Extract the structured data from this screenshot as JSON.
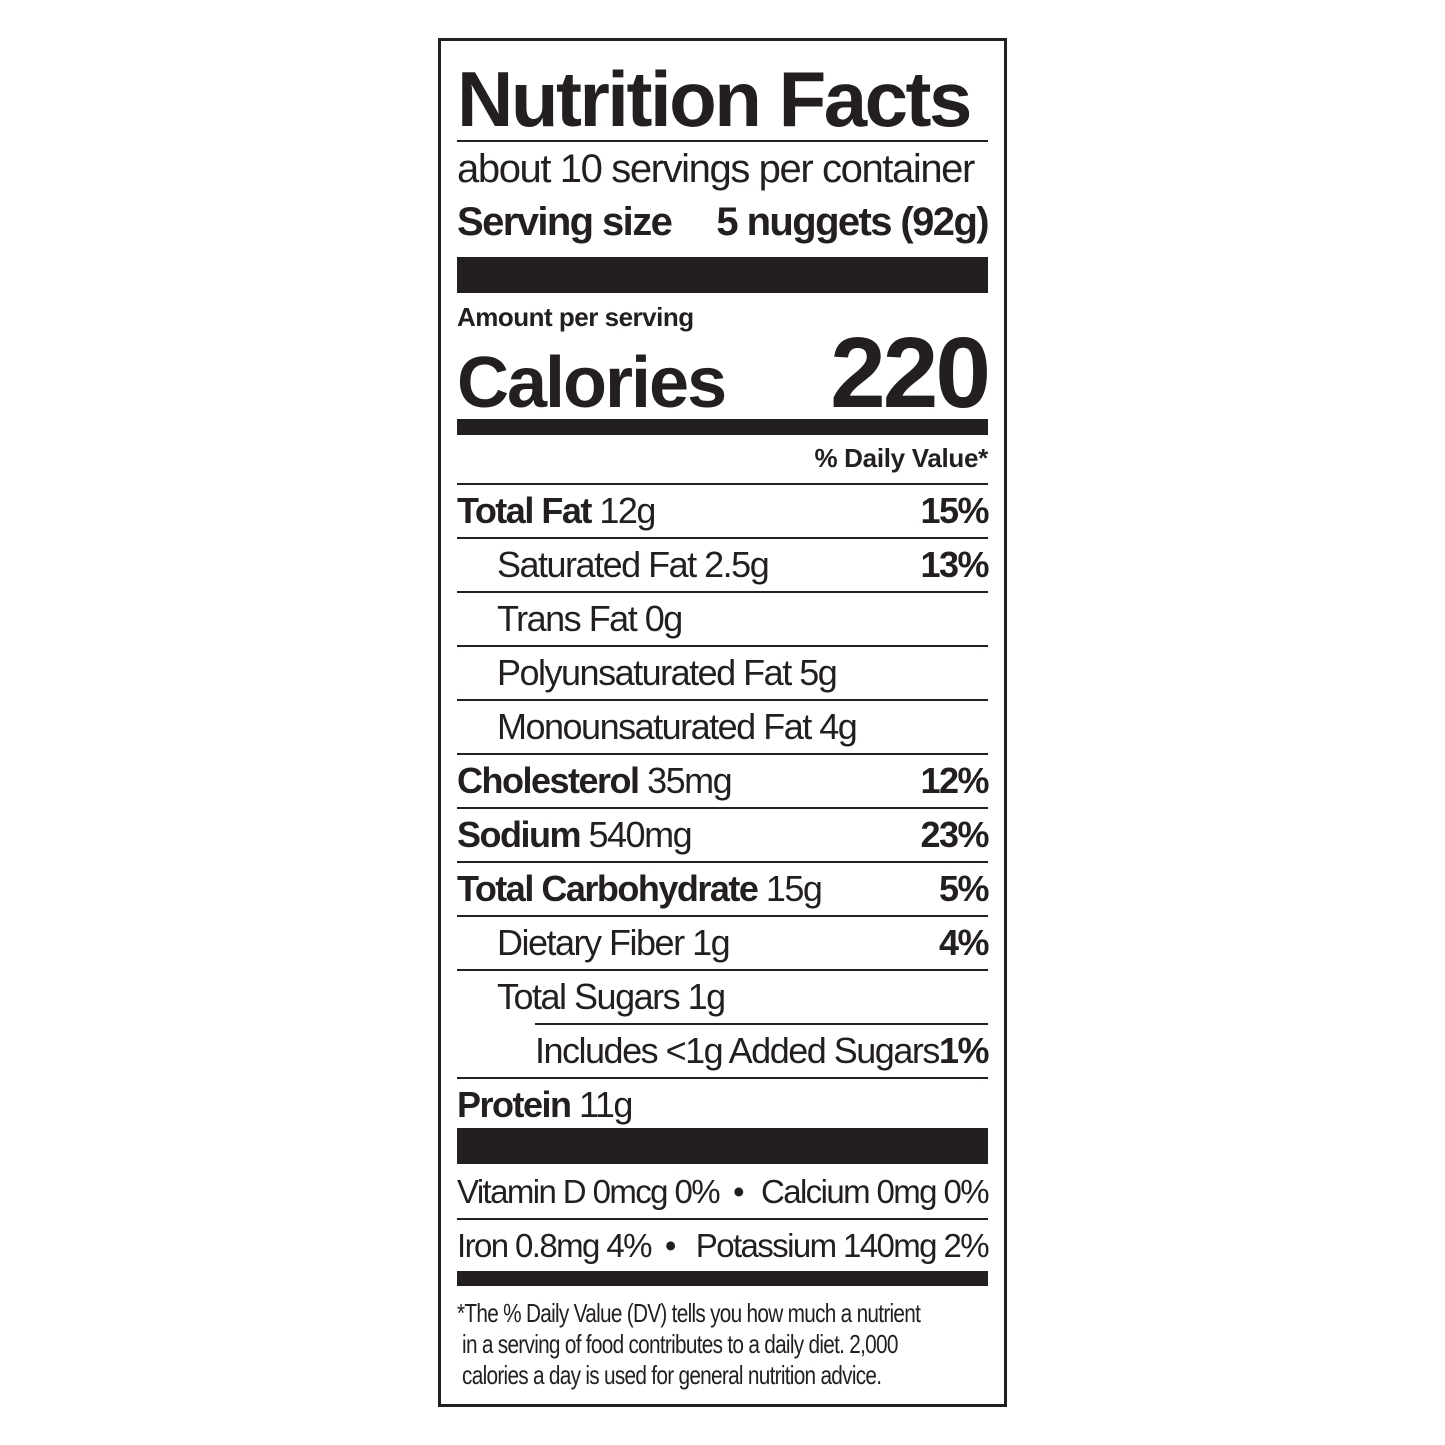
{
  "title": "Nutrition Facts",
  "servings_per_container": "about 10 servings per container",
  "serving_size": {
    "label": "Serving size",
    "value": "5 nuggets (92g)"
  },
  "amount_per_serving": "Amount per serving",
  "calories": {
    "label": "Calories",
    "value": "220"
  },
  "daily_value_header": "% Daily Value*",
  "nutrients": [
    {
      "name": "Total Fat",
      "amount": "12g",
      "dv": "15%"
    },
    {
      "name": "Saturated Fat",
      "amount": "2.5g",
      "dv": "13%"
    },
    {
      "name": "Trans Fat",
      "amount": "0g",
      "dv": ""
    },
    {
      "name": "Polyunsaturated Fat",
      "amount": "5g",
      "dv": ""
    },
    {
      "name": "Monounsaturated Fat",
      "amount": "4g",
      "dv": ""
    },
    {
      "name": "Cholesterol",
      "amount": "35mg",
      "dv": "12%"
    },
    {
      "name": "Sodium",
      "amount": "540mg",
      "dv": "23%"
    },
    {
      "name": "Total Carbohydrate",
      "amount": "15g",
      "dv": "5%"
    },
    {
      "name": "Dietary Fiber",
      "amount": "1g",
      "dv": "4%"
    },
    {
      "name": "Total Sugars",
      "amount": "1g",
      "dv": ""
    },
    {
      "name": "Includes <1g Added Sugars",
      "amount": "",
      "dv": "1%"
    },
    {
      "name": "Protein",
      "amount": "11g",
      "dv": ""
    }
  ],
  "vitamins": [
    {
      "left": "Vitamin D 0mcg 0%",
      "right": "Calcium 0mg 0%"
    },
    {
      "left": "Iron 0.8mg 4%",
      "right": "Potassium 140mg 2%"
    }
  ],
  "bullet": "•",
  "footnote": [
    "*The % Daily Value (DV) tells you how much a nutrient",
    " in a serving of food contributes to a daily diet. 2,000",
    " calories a day is used for general nutrition advice."
  ]
}
